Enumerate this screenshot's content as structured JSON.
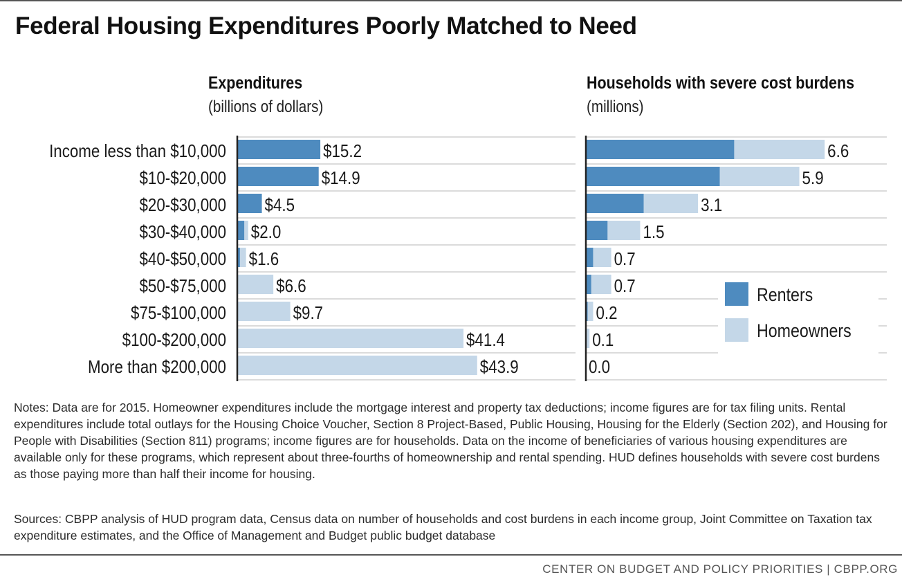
{
  "title": "Federal Housing Expenditures Poorly Matched to Need",
  "colors": {
    "renters": "#4e8bbf",
    "homeowners": "#c4d7e8",
    "grid": "#cfcfcf",
    "axis": "#222222"
  },
  "chart_data": [
    {
      "type": "bar",
      "orientation": "horizontal",
      "stacked": true,
      "title": "Expenditures",
      "subtitle": "(billions of dollars)",
      "categories": [
        "Income less than $10,000",
        "$10-$20,000",
        "$20-$30,000",
        "$30-$40,000",
        "$40-$50,000",
        "$50-$75,000",
        "$75-$100,000",
        "$100-$200,000",
        "More than $200,000"
      ],
      "series": [
        {
          "name": "Renters",
          "values": [
            15.2,
            14.9,
            4.5,
            1.3,
            0.5,
            0,
            0,
            0,
            0
          ]
        },
        {
          "name": "Homeowners",
          "values": [
            0,
            0,
            0,
            0.7,
            1.1,
            6.6,
            9.7,
            41.4,
            43.9
          ]
        }
      ],
      "totals": [
        15.2,
        14.9,
        4.5,
        2.0,
        1.6,
        6.6,
        9.7,
        41.4,
        43.9
      ],
      "data_labels": [
        "$15.2",
        "$14.9",
        "$4.5",
        "$2.0",
        "$1.6",
        "$6.6",
        "$9.7",
        "$41.4",
        "$43.9"
      ],
      "xlim": [
        0,
        55
      ]
    },
    {
      "type": "bar",
      "orientation": "horizontal",
      "stacked": true,
      "title": "Households with severe cost burdens",
      "subtitle": "(millions)",
      "categories": [
        "Income less than $10,000",
        "$10-$20,000",
        "$20-$30,000",
        "$30-$40,000",
        "$40-$50,000",
        "$50-$75,000",
        "$75-$100,000",
        "$100-$200,000",
        "More than $200,000"
      ],
      "series": [
        {
          "name": "Renters",
          "values": [
            4.1,
            3.7,
            1.6,
            0.6,
            0.2,
            0.15,
            0.05,
            0.02,
            0
          ]
        },
        {
          "name": "Homeowners",
          "values": [
            2.5,
            2.2,
            1.5,
            0.9,
            0.5,
            0.55,
            0.15,
            0.08,
            0
          ]
        }
      ],
      "totals": [
        6.6,
        5.9,
        3.1,
        1.5,
        0.7,
        0.7,
        0.2,
        0.1,
        0.0
      ],
      "data_labels": [
        "6.6",
        "5.9",
        "3.1",
        "1.5",
        "0.7",
        "0.7",
        "0.2",
        "0.1",
        "0.0"
      ],
      "xlim": [
        0,
        7.55
      ]
    }
  ],
  "legend": [
    {
      "label": "Renters",
      "color": "#4e8bbf"
    },
    {
      "label": "Homeowners",
      "color": "#c4d7e8"
    }
  ],
  "notes": "Notes: Data are for 2015.  Homeowner expenditures include the mortgage interest and property tax deductions; income figures are for tax filing units.  Rental expenditures include total outlays for the Housing Choice Voucher, Section 8 Project-Based, Public Housing, Housing for the Elderly (Section 202), and Housing for People with Disabilities (Section 811) programs; income figures are for households.  Data on the income of beneficiaries of various housing expenditures are available only for these programs, which represent about three-fourths of homeownership and rental spending.  HUD defines households with severe cost burdens as those paying more than half their income for housing.",
  "sources": "Sources:  CBPP analysis of HUD program data, Census data on number of households and cost burdens in each income group, Joint Committee on Taxation tax expenditure estimates, and the Office of Management and Budget public budget database",
  "footer": "CENTER ON BUDGET AND POLICY PRIORITIES | CBPP.ORG"
}
